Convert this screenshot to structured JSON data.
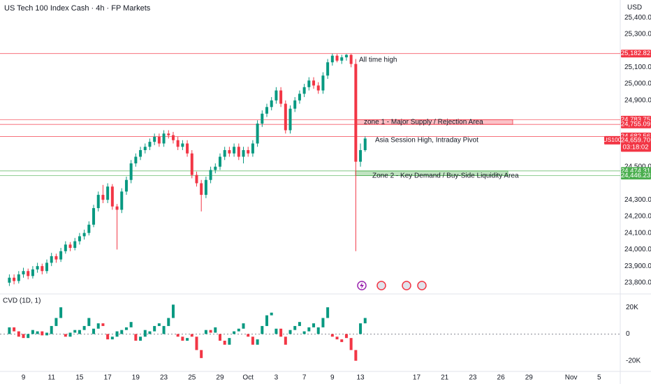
{
  "header": {
    "title": "US Tech 100 Index Cash · 4h · FP Markets",
    "currency": "USD"
  },
  "chart_data": [
    {
      "type": "candlestick",
      "symbol": "US100",
      "countdown": "03:18:02",
      "up_color": "#089981",
      "down_color": "#f23645",
      "x": [
        0,
        1,
        2,
        3,
        4,
        5,
        6,
        7,
        8,
        9,
        10,
        11,
        12,
        13,
        14,
        15,
        16,
        17,
        18,
        19,
        20,
        21,
        22,
        23,
        24,
        25,
        26,
        27,
        28,
        29,
        30,
        31,
        32,
        33,
        34,
        35,
        36,
        37,
        38,
        39,
        40,
        41,
        42,
        43,
        44,
        45,
        46,
        47,
        48,
        49,
        50,
        51,
        52,
        53,
        54,
        55,
        56,
        57,
        58,
        59,
        60,
        61,
        62,
        63,
        64,
        65,
        66,
        67,
        68,
        69,
        70,
        71,
        72,
        73,
        74,
        75,
        76
      ],
      "open": [
        23800,
        23830,
        23810,
        23850,
        23870,
        23840,
        23880,
        23900,
        23870,
        23920,
        23960,
        23940,
        23990,
        24030,
        24010,
        24050,
        24080,
        24100,
        24150,
        24250,
        24330,
        24300,
        24380,
        24260,
        24240,
        24350,
        24420,
        24520,
        24560,
        24600,
        24620,
        24650,
        24680,
        24640,
        24700,
        24690,
        24660,
        24620,
        24640,
        24580,
        24450,
        24400,
        24330,
        24420,
        24480,
        24500,
        24560,
        24600,
        24580,
        24620,
        24560,
        24600,
        24580,
        24640,
        24760,
        24820,
        24860,
        24900,
        24960,
        24880,
        24720,
        24850,
        24900,
        24940,
        24980,
        25020,
        24990,
        24960,
        25050,
        25130,
        25170,
        25140,
        25160,
        25175,
        25120,
        24530,
        24600
      ],
      "high": [
        23850,
        23850,
        23870,
        23890,
        23885,
        23900,
        23920,
        23915,
        23940,
        23980,
        23975,
        24010,
        24050,
        24045,
        24070,
        24100,
        24120,
        24170,
        24270,
        24350,
        24390,
        24400,
        24395,
        24275,
        24370,
        24440,
        24540,
        24580,
        24620,
        24640,
        24670,
        24700,
        24700,
        24720,
        24720,
        24710,
        24680,
        24660,
        24660,
        24600,
        24470,
        24420,
        24440,
        24500,
        24520,
        24580,
        24620,
        24620,
        24640,
        24640,
        24620,
        24620,
        24660,
        24780,
        24840,
        24880,
        24920,
        24980,
        24980,
        24900,
        24870,
        24920,
        24960,
        25000,
        25040,
        25040,
        25010,
        25070,
        25150,
        25182.82,
        25180,
        25175,
        25180,
        25180,
        25150,
        24640,
        24682.56
      ],
      "low": [
        23780,
        23790,
        23795,
        23830,
        23820,
        23825,
        23860,
        23850,
        23855,
        23900,
        23920,
        23925,
        23975,
        23990,
        23995,
        24030,
        24060,
        24085,
        24135,
        24230,
        24280,
        24280,
        24240,
        24000,
        24220,
        24330,
        24400,
        24500,
        24540,
        24580,
        24600,
        24630,
        24620,
        24620,
        24670,
        24640,
        24600,
        24600,
        24560,
        24430,
        24380,
        24230,
        24310,
        24400,
        24460,
        24480,
        24540,
        24560,
        24560,
        24540,
        24520,
        24560,
        24560,
        24620,
        24740,
        24800,
        24840,
        24880,
        24860,
        24700,
        24700,
        24830,
        24880,
        24920,
        24960,
        24970,
        24940,
        24940,
        25030,
        25110,
        25130,
        25120,
        25140,
        25100,
        23990,
        24500,
        24590
      ],
      "close": [
        23830,
        23810,
        23850,
        23870,
        23840,
        23880,
        23900,
        23870,
        23920,
        23960,
        23940,
        23990,
        24030,
        24010,
        24050,
        24080,
        24100,
        24150,
        24250,
        24330,
        24300,
        24380,
        24260,
        24240,
        24350,
        24420,
        24520,
        24560,
        24600,
        24620,
        24650,
        24680,
        24640,
        24700,
        24690,
        24660,
        24620,
        24640,
        24580,
        24450,
        24400,
        24330,
        24420,
        24480,
        24500,
        24560,
        24600,
        24580,
        24620,
        24560,
        24600,
        24580,
        24640,
        24760,
        24820,
        24860,
        24900,
        24960,
        24880,
        24720,
        24850,
        24900,
        24940,
        24980,
        25020,
        24990,
        24960,
        25050,
        25130,
        25170,
        25140,
        25160,
        25175,
        25120,
        24530,
        24600,
        24670
      ],
      "xlim": [
        -2,
        130.5
      ],
      "xticks": [
        {
          "value": 3,
          "label": "9"
        },
        {
          "value": 9,
          "label": "11"
        },
        {
          "value": 15,
          "label": "15"
        },
        {
          "value": 21,
          "label": "17"
        },
        {
          "value": 27,
          "label": "19"
        },
        {
          "value": 33,
          "label": "23"
        },
        {
          "value": 39,
          "label": "25"
        },
        {
          "value": 45,
          "label": "29"
        },
        {
          "value": 51,
          "label": "Oct"
        },
        {
          "value": 57,
          "label": "3"
        },
        {
          "value": 63,
          "label": "7"
        },
        {
          "value": 69,
          "label": "9"
        },
        {
          "value": 75,
          "label": "13"
        },
        {
          "value": 87,
          "label": "17"
        },
        {
          "value": 93,
          "label": "21"
        },
        {
          "value": 99,
          "label": "23"
        },
        {
          "value": 105,
          "label": "26"
        },
        {
          "value": 111,
          "label": "29"
        },
        {
          "value": 120,
          "label": "Nov"
        },
        {
          "value": 126,
          "label": "5"
        }
      ],
      "ylim": [
        23732,
        25506
      ],
      "yticks": [
        {
          "value": 25400,
          "label": "25,400.00"
        },
        {
          "value": 25300,
          "label": "25,300.00"
        },
        {
          "value": 25100,
          "label": "25,100.00"
        },
        {
          "value": 25000,
          "label": "25,000.00"
        },
        {
          "value": 24900,
          "label": "24,900.00"
        },
        {
          "value": 24500,
          "label": "24,500.00"
        },
        {
          "value": 24300,
          "label": "24,300.00"
        },
        {
          "value": 24200,
          "label": "24,200.00"
        },
        {
          "value": 24100,
          "label": "24,100.00"
        },
        {
          "value": 24000,
          "label": "24,000.00"
        },
        {
          "value": 23900,
          "label": "23,900.00"
        },
        {
          "value": 23800,
          "label": "23,800.00"
        }
      ],
      "levels": [
        {
          "value": 25182.82,
          "label": "25,182.82",
          "color": "#f23645"
        },
        {
          "value": 24783.75,
          "label": "24,783.75",
          "color": "#f23645"
        },
        {
          "value": 24755.09,
          "label": "24,755.09",
          "color": "#f23645"
        },
        {
          "value": 24682.56,
          "label": "24,682.56",
          "color": "#f23645"
        },
        {
          "value": 24659.7,
          "label": "24,659.70",
          "color": "#f23645"
        },
        {
          "value": 24474.31,
          "label": "24,474.31",
          "color": "#4caf50"
        },
        {
          "value": 24446.23,
          "label": "24,446.23",
          "color": "#4caf50"
        }
      ],
      "annotations": [
        "All time high",
        "zone 1 - Major Supply / Rejection Area",
        "Asia Session High, Intraday Pivot",
        "Zone 2 - Key Demand / Buy-Side Liquidity Area"
      ]
    },
    {
      "type": "cvd",
      "title": "CVD (1D, 1)",
      "up_color": "#089981",
      "down_color": "#f23645",
      "x": [
        0,
        1,
        2,
        3,
        4,
        5,
        6,
        7,
        8,
        9,
        10,
        11,
        12,
        13,
        14,
        15,
        16,
        17,
        18,
        19,
        20,
        21,
        22,
        23,
        24,
        25,
        26,
        27,
        28,
        29,
        30,
        31,
        32,
        33,
        34,
        35,
        36,
        37,
        38,
        39,
        40,
        41,
        42,
        43,
        44,
        45,
        46,
        47,
        48,
        49,
        50,
        51,
        52,
        53,
        54,
        55,
        56,
        57,
        58,
        59,
        60,
        61,
        62,
        63,
        64,
        65,
        66,
        67,
        68,
        69,
        70,
        71,
        72,
        73,
        74,
        75,
        76
      ],
      "open": [
        0,
        5000,
        2000,
        0,
        -3000,
        0,
        0,
        2000,
        -1000,
        0,
        6000,
        12000,
        0,
        -2000,
        1000,
        0,
        3000,
        6000,
        0,
        4000,
        8000,
        0,
        -4000,
        -2000,
        0,
        3000,
        5000,
        0,
        -5000,
        -2000,
        0,
        2000,
        6000,
        0,
        6000,
        12000,
        0,
        -2000,
        -5000,
        0,
        -2000,
        -12000,
        0,
        3000,
        1000,
        0,
        -5000,
        -8000,
        0,
        2000,
        4000,
        0,
        -2000,
        -8000,
        0,
        6000,
        14000,
        0,
        4000,
        -2000,
        0,
        3000,
        6000,
        0,
        2000,
        5000,
        0,
        5000,
        12000,
        0,
        -2000,
        -4000,
        0,
        -3000,
        -12000,
        0,
        8000
      ],
      "close": [
        5000,
        2000,
        -2000,
        -3000,
        0,
        3000,
        2000,
        -1000,
        1000,
        6000,
        12000,
        20000,
        -2000,
        1000,
        3000,
        3000,
        6000,
        12000,
        4000,
        8000,
        6000,
        -4000,
        -2000,
        2000,
        3000,
        5000,
        9000,
        -5000,
        -2000,
        3000,
        2000,
        6000,
        8000,
        6000,
        12000,
        22000,
        -2000,
        -5000,
        -3000,
        -2000,
        -12000,
        -18000,
        3000,
        1000,
        5000,
        -5000,
        -8000,
        -3000,
        2000,
        4000,
        8000,
        -2000,
        -8000,
        -4000,
        6000,
        14000,
        16000,
        4000,
        -2000,
        -8000,
        3000,
        6000,
        9000,
        2000,
        5000,
        8000,
        5000,
        12000,
        20000,
        -2000,
        -4000,
        -6000,
        -3000,
        -12000,
        -20000,
        8000,
        12000
      ],
      "ylim": [
        -28000,
        30000
      ],
      "yticks": [
        {
          "value": 20000,
          "label": "20K"
        },
        0,
        {
          "value": -20000,
          "label": "-20K"
        }
      ]
    }
  ]
}
